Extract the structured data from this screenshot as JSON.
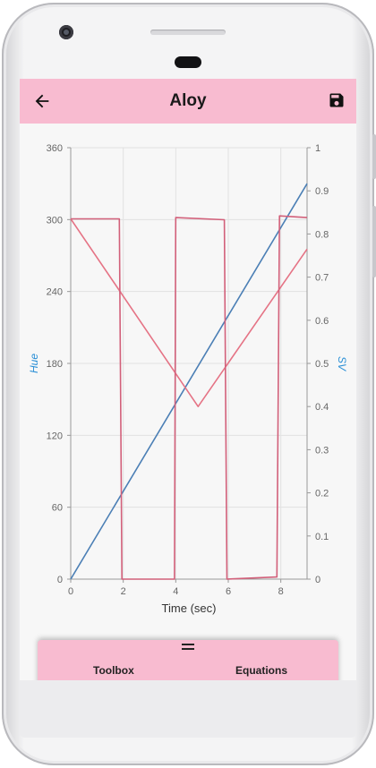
{
  "app": {
    "title": "Aloy",
    "back_icon": "arrow-left-icon",
    "save_icon": "save-icon"
  },
  "colors": {
    "appbar": "#f8bbd0",
    "hue_series": "#4b7fb5",
    "sv_series": "#e57385",
    "plot_bg": "#f7f7f7",
    "axis_label": "#2a8fd6"
  },
  "bottom_sheet": {
    "handle_icon": "drag-handle-icon",
    "tabs": [
      {
        "label": "Toolbox"
      },
      {
        "label": "Equations"
      }
    ]
  },
  "chart_data": {
    "type": "line",
    "xlabel": "Time (sec)",
    "ylabel_left": "Hue",
    "ylabel_right": "SV",
    "xlim": [
      0,
      9
    ],
    "ylim_left": [
      0,
      360
    ],
    "ylim_right": [
      0,
      1
    ],
    "x_ticks": [
      0,
      2,
      4,
      6,
      8
    ],
    "y_ticks_left": [
      0,
      60,
      120,
      180,
      240,
      300,
      360
    ],
    "y_ticks_right": [
      0,
      0.1,
      0.2,
      0.3,
      0.4,
      0.5,
      0.6,
      0.7,
      0.8,
      0.9,
      1
    ],
    "grid": true,
    "series": [
      {
        "axis": "left",
        "color": "#4b7fb5",
        "points": [
          [
            0,
            0
          ],
          [
            9,
            330
          ]
        ]
      },
      {
        "axis": "right",
        "color": "#e57385",
        "points": [
          [
            0,
            0.835
          ],
          [
            4.85,
            0.4
          ],
          [
            9,
            0.765
          ]
        ]
      },
      {
        "axis": "right",
        "color": "#d2607a",
        "points": [
          [
            0,
            0.835
          ],
          [
            1.85,
            0.835
          ],
          [
            1.95,
            0.0
          ],
          [
            3.95,
            0.0
          ],
          [
            4.0,
            0.838
          ],
          [
            5.85,
            0.833
          ],
          [
            5.95,
            0.0
          ],
          [
            7.85,
            0.005
          ],
          [
            7.95,
            0.842
          ],
          [
            9,
            0.838
          ]
        ]
      }
    ]
  }
}
